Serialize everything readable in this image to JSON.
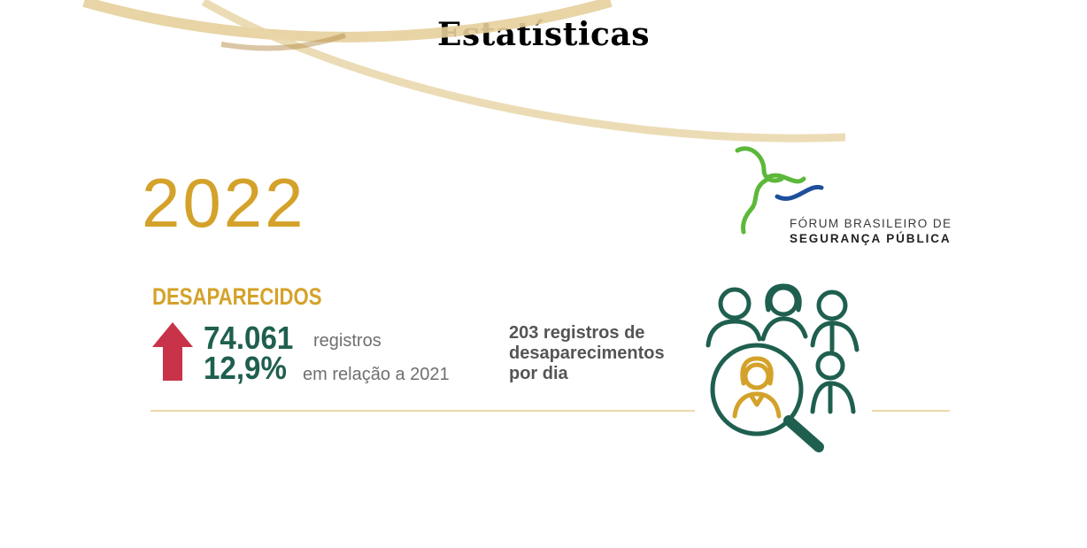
{
  "title": "Estatísticas",
  "infographic": {
    "year": "2022",
    "category": "DESAPARECIDOS",
    "records_value": "74.061",
    "records_label": "registros",
    "change_value": "12,9%",
    "change_label": "em relação a 2021",
    "per_day_line1": "203 registros de",
    "per_day_line2": "desaparecimentos",
    "per_day_line3": "por dia",
    "trend_icon": "arrow-up-icon",
    "illustration_icon": "people-search-icon"
  },
  "logo": {
    "line1": "FÓRUM BRASILEIRO DE",
    "line2": "SEGURANÇA PÚBLICA"
  },
  "colors": {
    "gold": "#d4a22a",
    "green": "#1f5f4f",
    "red": "#c8334a",
    "logo_green": "#5cb83a",
    "logo_blue": "#1d4f9c"
  }
}
